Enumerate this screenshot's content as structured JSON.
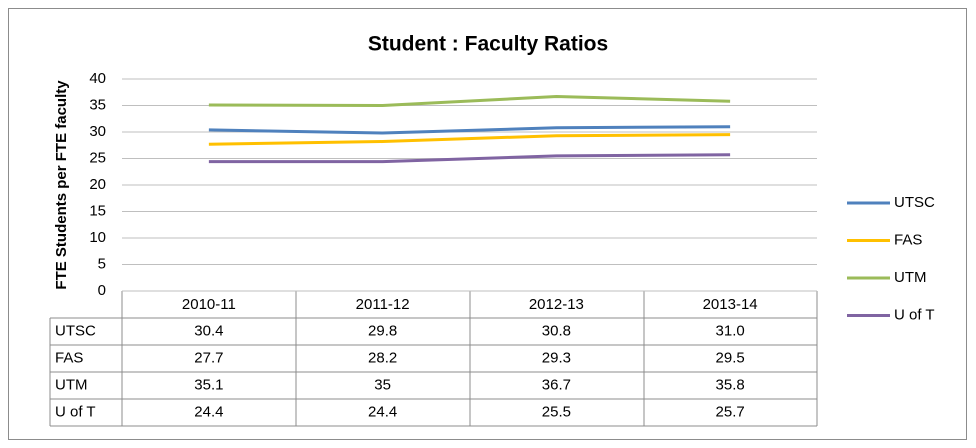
{
  "chart_data": {
    "type": "line",
    "title": "Student : Faculty Ratios",
    "ylabel": "FTE Students per FTE faculty",
    "categories": [
      "2010-11",
      "2011-12",
      "2012-13",
      "2013-14"
    ],
    "series": [
      {
        "name": "UTSC",
        "color": "#4f81bd",
        "values": [
          30.4,
          29.8,
          30.8,
          31.0
        ],
        "value_labels": [
          "30.4",
          "29.8",
          "30.8",
          "31.0"
        ]
      },
      {
        "name": "FAS",
        "color": "#ffc000",
        "values": [
          27.7,
          28.2,
          29.3,
          29.5
        ]
      },
      {
        "name": "UTM",
        "color": "#9bbb59",
        "values": [
          35.1,
          35,
          36.7,
          35.8
        ]
      },
      {
        "name": "U of T",
        "color": "#8064a2",
        "values": [
          24.4,
          24.4,
          25.5,
          25.7
        ]
      }
    ],
    "ylim": [
      0,
      40
    ],
    "yticks": [
      0,
      5,
      10,
      15,
      20,
      25,
      30,
      35,
      40
    ],
    "grid": true,
    "legend": "right"
  }
}
